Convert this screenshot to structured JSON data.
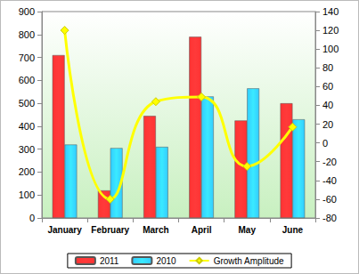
{
  "chart_data": {
    "type": "bar",
    "categories": [
      "January",
      "February",
      "March",
      "April",
      "May",
      "June"
    ],
    "series": [
      {
        "name": "2011",
        "type": "bar",
        "color": "#ff3333",
        "values": [
          710,
          120,
          445,
          790,
          425,
          500
        ]
      },
      {
        "name": "2010",
        "type": "bar",
        "color": "#33ccff",
        "values": [
          320,
          305,
          310,
          530,
          565,
          430
        ]
      },
      {
        "name": "Growth Amplitude",
        "type": "line",
        "axis": "y2",
        "color": "#ffff00",
        "marker": "diamond",
        "line_style": "solid",
        "values": [
          120,
          -60,
          44,
          49,
          -25,
          17
        ]
      }
    ],
    "ylim": [
      0,
      900
    ],
    "yticks": [
      0,
      100,
      200,
      300,
      400,
      500,
      600,
      700,
      800,
      900
    ],
    "y2lim": [
      -80,
      140
    ],
    "y2ticks": [
      -80,
      -60,
      -40,
      -20,
      0,
      20,
      40,
      60,
      80,
      100,
      120,
      140
    ],
    "grid": false,
    "legend": "bottom"
  }
}
